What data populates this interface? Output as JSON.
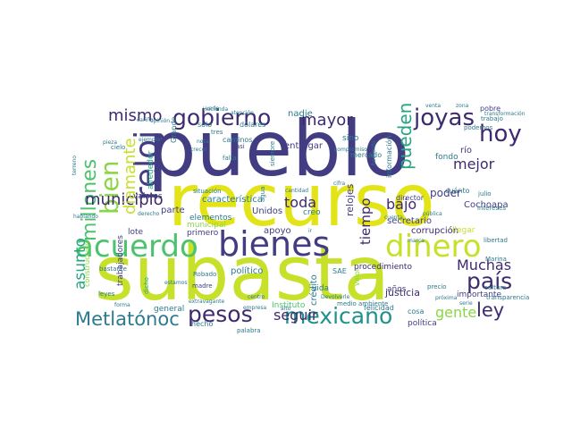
{
  "wordcloud": {
    "palette": [
      "#3e2a6f",
      "#423d83",
      "#3a5a8d",
      "#2c7a8e",
      "#21918c",
      "#27a583",
      "#4cc26c",
      "#8bd646",
      "#c7e02a",
      "#e3e418"
    ],
    "words": [
      "pueblo",
      "recurso",
      "subasta",
      "acuerdo",
      "bienes",
      "dinero",
      "gobierno",
      "joyas",
      "reloj",
      "hoy",
      "millones",
      "bien",
      "mismo",
      "pesos",
      "mexicano",
      "país",
      "Metlatónoc",
      "ley",
      "municipio",
      "diamante",
      "mayor",
      "pueden",
      "Muchas",
      "seguir",
      "mejor",
      "toda",
      "bajo",
      "asunto",
      "gente",
      "tiempo",
      "relojes",
      "corrupción",
      "justicia",
      "Cochoapa",
      "secretario",
      "apoyo",
      "característica",
      "parte",
      "político",
      "Unidos",
      "Grande",
      "entregar",
      "nadie",
      "sino",
      "mercado",
      "fondo",
      "río",
      "pobre",
      "trabajo",
      "podemos",
      "tres",
      "casi",
      "solo",
      "dólares",
      "alrededor",
      "construcción",
      "trabajadores",
      "elementos",
      "primero",
      "valores",
      "lote",
      "creo",
      "agua",
      "procedimiento",
      "SAE",
      "años",
      "vida",
      "valor",
      "crédito",
      "política",
      "importante",
      "municipal",
      "general",
      "hecho",
      "Instituto",
      "felicidad",
      "medio ambiente",
      "director",
      "cuánto",
      "julio",
      "llegar",
      "siempre",
      "información",
      "intereses",
      "cultura",
      "Marina",
      "libertad",
      "dicho",
      "transparencia",
      "cosa",
      "precio",
      "madre",
      "Robado",
      "leyes",
      "bastante",
      "marca",
      "cantidad",
      "empresa",
      "situación",
      "palabra",
      "pieza",
      "cariño",
      "cielo",
      "terreno",
      "hablando",
      "opinión",
      "verlo",
      "nota",
      "caminos",
      "crecer",
      "falta",
      "derecho",
      "forma",
      "centro",
      "alto",
      "Devolverle",
      "Hacienda",
      "atención",
      "venta",
      "zona",
      "transformación",
      "compromiso",
      "cuenta",
      "cifra",
      "pública",
      "haciendo",
      "estamos",
      "extravagante",
      "próxima",
      "ejemplo",
      "poder",
      "ir",
      "serie",
      "mucho"
    ]
  }
}
